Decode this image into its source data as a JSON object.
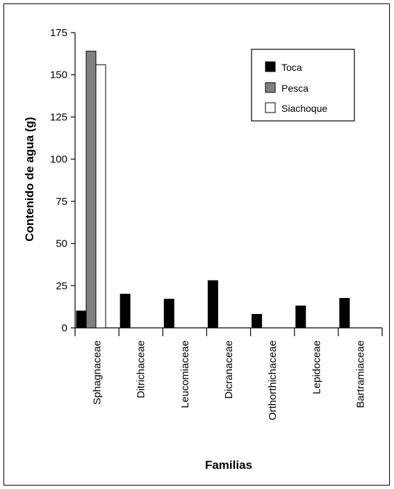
{
  "chart_data": {
    "type": "bar",
    "title": "",
    "xlabel": "Familias",
    "ylabel": "Contenido de agua (g)",
    "ylim": [
      0,
      175
    ],
    "yticks": [
      0,
      25,
      50,
      75,
      100,
      125,
      150,
      175
    ],
    "grid": false,
    "legend_position": "top-right",
    "categories": [
      "Sphagnaceae",
      "Ditrichaceae",
      "Leucomiaceae",
      "Dicranaceae",
      "Orthorthichaceae",
      "Lepidoceae",
      "Bartramiaceae"
    ],
    "series": [
      {
        "name": "Toca",
        "color": "#000000",
        "values": [
          10,
          20,
          17,
          28,
          8,
          13,
          17.5
        ]
      },
      {
        "name": "Pesca",
        "color": "#808080",
        "values": [
          164,
          null,
          null,
          null,
          null,
          null,
          null
        ]
      },
      {
        "name": "Siachoque",
        "color": "#ffffff",
        "values": [
          156,
          null,
          null,
          null,
          null,
          null,
          null
        ]
      }
    ]
  }
}
